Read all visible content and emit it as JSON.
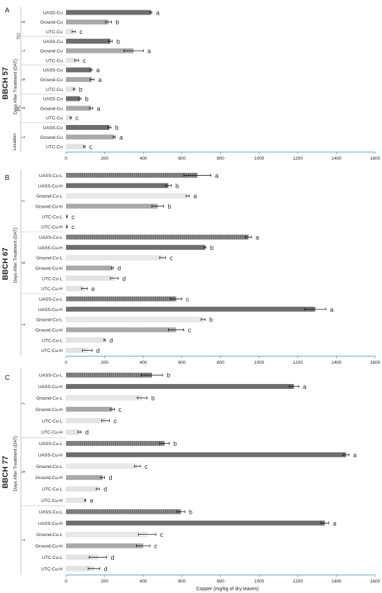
{
  "chart_data": [
    {
      "type": "bar",
      "orientation": "horizontal",
      "panel_letter": "A",
      "stage": "BBCH 57",
      "y_group_title": "Days After Treatment (DAT)",
      "y_subgroup_title": "Location",
      "xlim": [
        0,
        1600
      ],
      "xticks": [
        "0",
        "200",
        "400",
        "600",
        "800",
        "1000",
        "1200",
        "1400",
        "1600"
      ],
      "groups": [
        {
          "label": "TO",
          "days": [
            {
              "label": "5",
              "bars": [
                {
                  "label": "UASS-Cu",
                  "value": 440,
                  "err": 5,
                  "letter": "a",
                  "pattern": "dark"
                },
                {
                  "label": "Ground-Cu",
                  "value": 220,
                  "err": 15,
                  "letter": "b",
                  "pattern": "medium"
                },
                {
                  "label": "UTC-Cu",
                  "value": 40,
                  "err": 8,
                  "letter": "c",
                  "pattern": "light"
                }
              ]
            },
            {
              "label": "1",
              "bars": [
                {
                  "label": "UASS-Cu",
                  "value": 230,
                  "err": 10,
                  "letter": "b",
                  "pattern": "dark"
                },
                {
                  "label": "Ground-Cu",
                  "value": 350,
                  "err": 50,
                  "letter": "a",
                  "pattern": "medium"
                },
                {
                  "label": "UTC-Cu",
                  "value": 55,
                  "err": 10,
                  "letter": "c",
                  "pattern": "light"
                }
              ]
            }
          ]
        },
        {
          "label": "PC",
          "days": [
            {
              "label": "5",
              "bars": [
                {
                  "label": "UASS-Cu",
                  "value": 130,
                  "err": 5,
                  "letter": "a",
                  "pattern": "dark"
                },
                {
                  "label": "Ground-Cu",
                  "value": 135,
                  "err": 10,
                  "letter": "a",
                  "pattern": "medium"
                },
                {
                  "label": "UTC-Cu",
                  "value": 42,
                  "err": 4,
                  "letter": "b",
                  "pattern": "light"
                }
              ]
            },
            {
              "label": "3",
              "bars": [
                {
                  "label": "UASS-Cu",
                  "value": 72,
                  "err": 5,
                  "letter": "b",
                  "pattern": "dark"
                },
                {
                  "label": "Ground-Cu",
                  "value": 130,
                  "err": 8,
                  "letter": "a",
                  "pattern": "medium"
                },
                {
                  "label": "UTC-Cu",
                  "value": 25,
                  "err": 3,
                  "letter": "c",
                  "pattern": "light"
                }
              ]
            },
            {
              "label": "1",
              "bars": [
                {
                  "label": "UASS-Cu",
                  "value": 225,
                  "err": 8,
                  "letter": "b",
                  "pattern": "dark"
                },
                {
                  "label": "Ground-Cu",
                  "value": 250,
                  "err": 5,
                  "letter": "a",
                  "pattern": "medium"
                },
                {
                  "label": "UTC-Cu",
                  "value": 95,
                  "err": 4,
                  "letter": "c",
                  "pattern": "light"
                }
              ]
            }
          ]
        }
      ]
    },
    {
      "type": "bar",
      "orientation": "horizontal",
      "panel_letter": "B",
      "stage": "BBCH 67",
      "y_group_title": "Days After Treatment (DAT)",
      "xlim": [
        0,
        1600
      ],
      "xticks": [
        "0",
        "200",
        "400",
        "600",
        "800",
        "1000",
        "1200",
        "1400",
        "1600"
      ],
      "days": [
        {
          "label": "7",
          "bars": [
            {
              "label": "UASS-Cu-L",
              "value": 680,
              "err": 70,
              "letter": "a",
              "pattern": "dark-hatched"
            },
            {
              "label": "UASS-Cu-H",
              "value": 530,
              "err": 15,
              "letter": "b",
              "pattern": "dark"
            },
            {
              "label": "Ground-Cu-L",
              "value": 630,
              "err": 8,
              "letter": "a",
              "pattern": "light-dotted"
            },
            {
              "label": "Ground-Cu-H",
              "value": 475,
              "err": 30,
              "letter": "b",
              "pattern": "medium"
            },
            {
              "label": "UTC-Cu-L",
              "value": 5,
              "err": 2,
              "letter": "c",
              "pattern": "light"
            },
            {
              "label": "UTC-Cu-H",
              "value": 5,
              "err": 2,
              "letter": "c",
              "pattern": "light"
            }
          ]
        },
        {
          "label": "5",
          "bars": [
            {
              "label": "UASS-Cu-L",
              "value": 945,
              "err": 15,
              "letter": "a",
              "pattern": "dark-hatched"
            },
            {
              "label": "UASS-Cu-H",
              "value": 720,
              "err": 5,
              "letter": "b",
              "pattern": "dark"
            },
            {
              "label": "Ground-Cu-L",
              "value": 500,
              "err": 15,
              "letter": "c",
              "pattern": "light-dotted"
            },
            {
              "label": "Ground-Cu-H",
              "value": 240,
              "err": 5,
              "letter": "d",
              "pattern": "medium"
            },
            {
              "label": "UTC-Cu-L",
              "value": 250,
              "err": 20,
              "letter": "d",
              "pattern": "light"
            },
            {
              "label": "UTC-Cu-H",
              "value": 95,
              "err": 15,
              "letter": "e",
              "pattern": "light"
            }
          ]
        },
        {
          "label": "1",
          "bars": [
            {
              "label": "UASS-Cu-L",
              "value": 570,
              "err": 30,
              "letter": "c",
              "pattern": "dark-hatched"
            },
            {
              "label": "UASS-Cu-H",
              "value": 1290,
              "err": 55,
              "letter": "a",
              "pattern": "dark"
            },
            {
              "label": "Ground-Cu-L",
              "value": 710,
              "err": 10,
              "letter": "b",
              "pattern": "light-dotted"
            },
            {
              "label": "Ground-Cu-H",
              "value": 570,
              "err": 40,
              "letter": "c",
              "pattern": "medium"
            },
            {
              "label": "UTC-Cu-L",
              "value": 200,
              "err": 3,
              "letter": "d",
              "pattern": "light"
            },
            {
              "label": "UTC-Cu-H",
              "value": 110,
              "err": 25,
              "letter": "d",
              "pattern": "light"
            }
          ]
        }
      ]
    },
    {
      "type": "bar",
      "orientation": "horizontal",
      "panel_letter": "C",
      "stage": "BBCH 77",
      "y_group_title": "Days After Treatment (DAT)",
      "xlabel": "Copper (mg/kg of dry leaves)",
      "xlim": [
        0,
        1600
      ],
      "xticks": [
        "0",
        "200",
        "400",
        "600",
        "800",
        "1000",
        "1200",
        "1400",
        "1600"
      ],
      "days": [
        {
          "label": "7",
          "bars": [
            {
              "label": "UASS-Cu-L",
              "value": 445,
              "err": 55,
              "letter": "b",
              "pattern": "dark-hatched"
            },
            {
              "label": "UASS-Cu-H",
              "value": 1180,
              "err": 25,
              "letter": "a",
              "pattern": "dark"
            },
            {
              "label": "Ground-Cu-L",
              "value": 395,
              "err": 25,
              "letter": "b",
              "pattern": "light-dotted"
            },
            {
              "label": "Ground-Cu-H",
              "value": 240,
              "err": 10,
              "letter": "c",
              "pattern": "medium"
            },
            {
              "label": "UTC-Cu-L",
              "value": 205,
              "err": 20,
              "letter": "c",
              "pattern": "light"
            },
            {
              "label": "UTC-Cu-H",
              "value": 70,
              "err": 8,
              "letter": "d",
              "pattern": "light"
            }
          ]
        },
        {
          "label": "5",
          "bars": [
            {
              "label": "UASS-Cu-L",
              "value": 510,
              "err": 25,
              "letter": "b",
              "pattern": "dark-hatched"
            },
            {
              "label": "UASS-Cu-H",
              "value": 1450,
              "err": 15,
              "letter": "a",
              "pattern": "dark"
            },
            {
              "label": "Ground-Cu-L",
              "value": 370,
              "err": 15,
              "letter": "c",
              "pattern": "light-dotted"
            },
            {
              "label": "Ground-Cu-H",
              "value": 190,
              "err": 10,
              "letter": "d",
              "pattern": "medium"
            },
            {
              "label": "UTC-Cu-L",
              "value": 165,
              "err": 8,
              "letter": "d",
              "pattern": "light"
            },
            {
              "label": "UTC-Cu-H",
              "value": 100,
              "err": 3,
              "letter": "e",
              "pattern": "light"
            }
          ]
        },
        {
          "label": "1",
          "bars": [
            {
              "label": "UASS-Cu-L",
              "value": 595,
              "err": 20,
              "letter": "b",
              "pattern": "dark-hatched"
            },
            {
              "label": "UASS-Cu-H",
              "value": 1340,
              "err": 20,
              "letter": "a",
              "pattern": "dark"
            },
            {
              "label": "Ground-Cu-L",
              "value": 420,
              "err": 45,
              "letter": "c",
              "pattern": "light-dotted"
            },
            {
              "label": "Ground-Cu-H",
              "value": 400,
              "err": 35,
              "letter": "c",
              "pattern": "medium"
            },
            {
              "label": "UTC-Cu-L",
              "value": 165,
              "err": 45,
              "letter": "d",
              "pattern": "light"
            },
            {
              "label": "UTC-Cu-H",
              "value": 145,
              "err": 30,
              "letter": "d",
              "pattern": "light"
            }
          ]
        }
      ]
    }
  ],
  "colors": {
    "dark": "#6e6e6e",
    "medium": "#a9a9a9",
    "light": "#e3e3e3",
    "hatch_bg": "#8a8a8a",
    "dotted_bg": "#ececec",
    "axis": "#4aa3c8",
    "text": "#222222",
    "group_line": "#bfbfbf"
  }
}
